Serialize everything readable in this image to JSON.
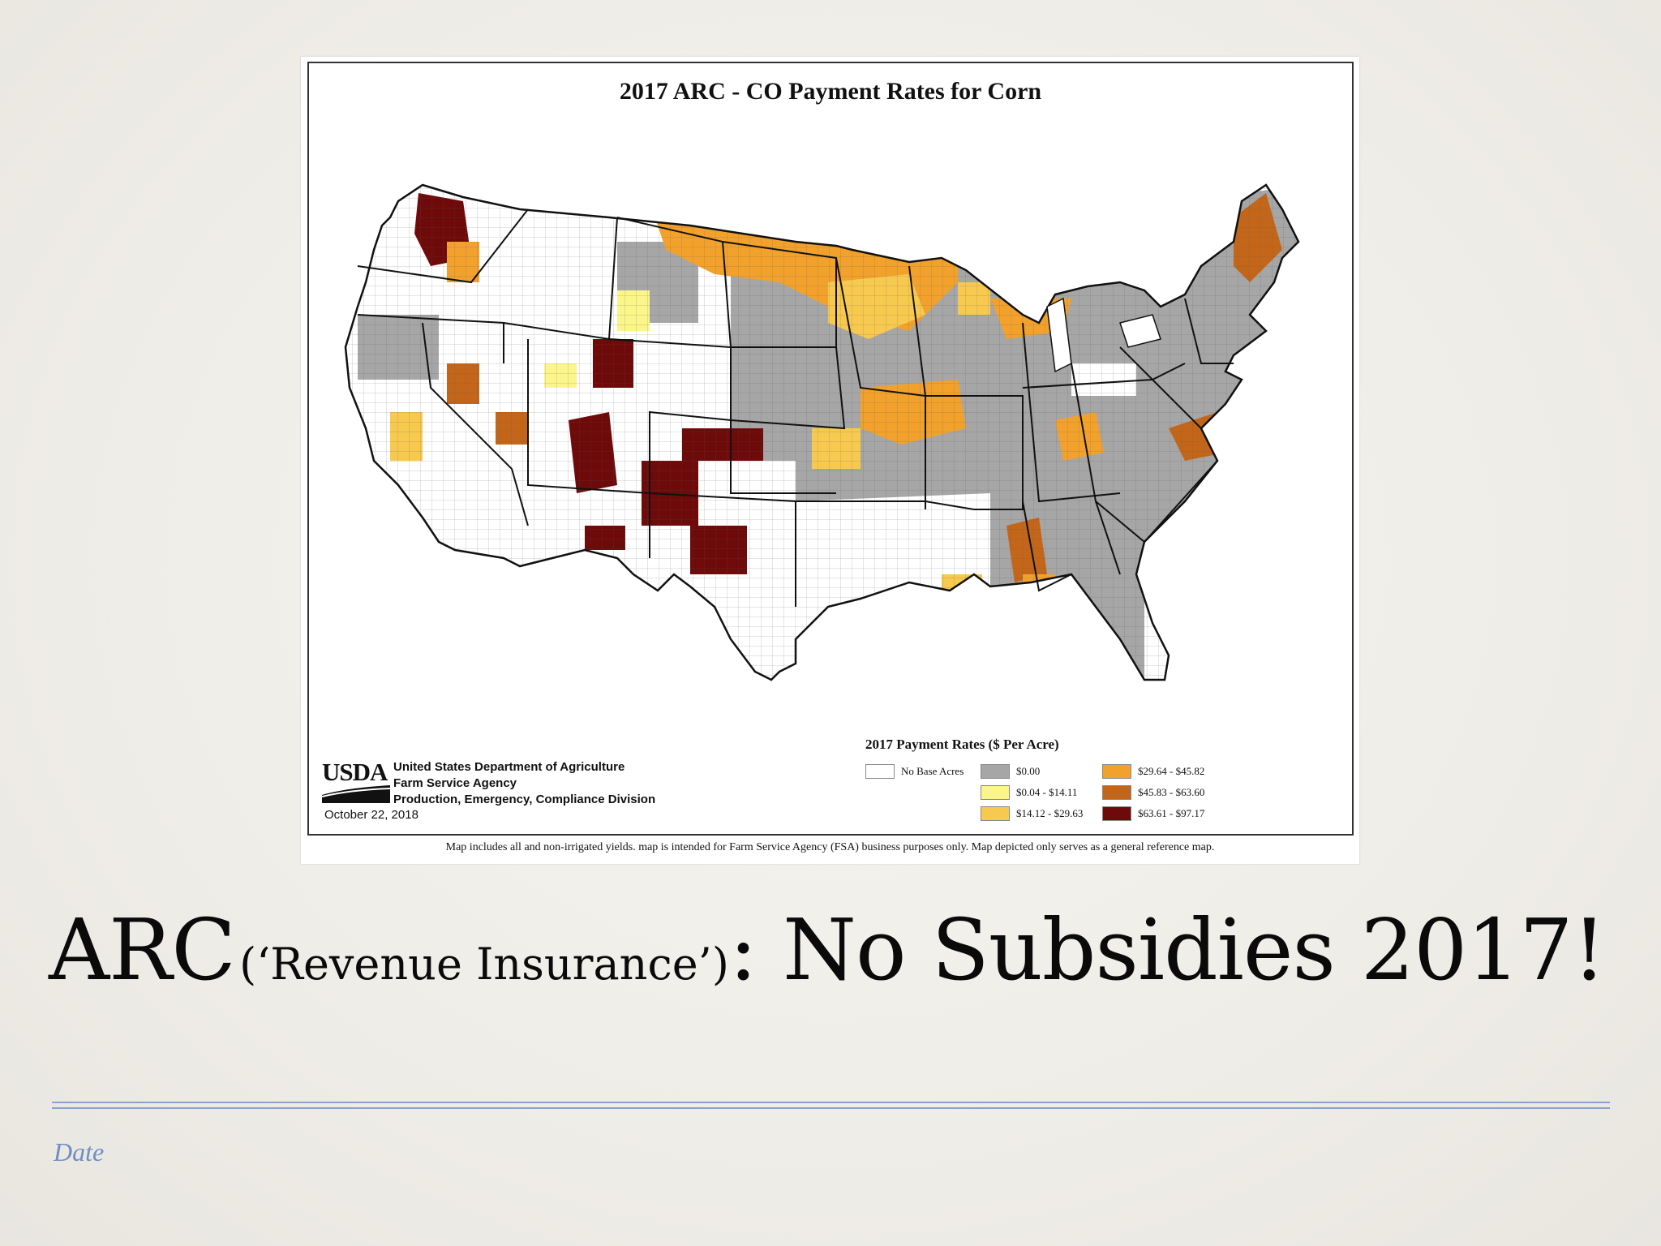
{
  "map": {
    "title": "2017 ARC - CO Payment Rates for Corn",
    "note": "Map includes all and non-irrigated yields.  map is intended for Farm Service Agency (FSA) business purposes only.  Map depicted only serves as a general reference map.",
    "usda": {
      "logo": "USDA",
      "lines": [
        "United States Department of Agriculture",
        "Farm Service Agency",
        "Production, Emergency, Compliance Division"
      ],
      "date": "October 22, 2018"
    },
    "legend": {
      "title": "2017 Payment Rates ($ Per Acre)",
      "items": [
        {
          "label": "No Base Acres",
          "color": "#ffffff"
        },
        {
          "label": "$0.00",
          "color": "#a6a6a6"
        },
        {
          "label": "$0.04 - $14.11",
          "color": "#fbf58a"
        },
        {
          "label": "$14.12 - $29.63",
          "color": "#f7c94f"
        },
        {
          "label": "$29.64 - $45.82",
          "color": "#f2a22c"
        },
        {
          "label": "$45.83 - $63.60",
          "color": "#c4661a"
        },
        {
          "label": "$63.61 - $97.17",
          "color": "#6e0a0a"
        }
      ]
    }
  },
  "headline": {
    "part1": "ARC",
    "part2": "(‘Revenue Insurance’)",
    "part3": ":  No Subsidies 2017!"
  },
  "footer": {
    "date": "Date"
  },
  "colors": {
    "rule": "#8ba3cc",
    "date": "#6f8ec4"
  }
}
